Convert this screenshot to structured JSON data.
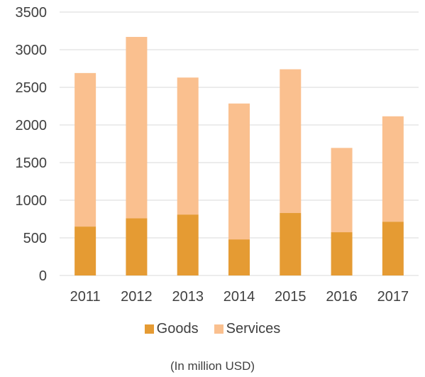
{
  "chart_data": {
    "type": "bar",
    "stacked": true,
    "categories": [
      "2011",
      "2012",
      "2013",
      "2014",
      "2015",
      "2016",
      "2017"
    ],
    "series": [
      {
        "name": "Goods",
        "color": "#E59B33",
        "values": [
          650,
          760,
          810,
          480,
          830,
          575,
          715
        ]
      },
      {
        "name": "Services",
        "color": "#FAC08F",
        "values": [
          2040,
          2410,
          1820,
          1805,
          1910,
          1120,
          1400
        ]
      }
    ],
    "ylim": [
      0,
      3500
    ],
    "yticks": [
      0,
      500,
      1000,
      1500,
      2000,
      2500,
      3000,
      3500
    ],
    "grid": true,
    "legend_position": "bottom",
    "note": "(In million USD)"
  }
}
